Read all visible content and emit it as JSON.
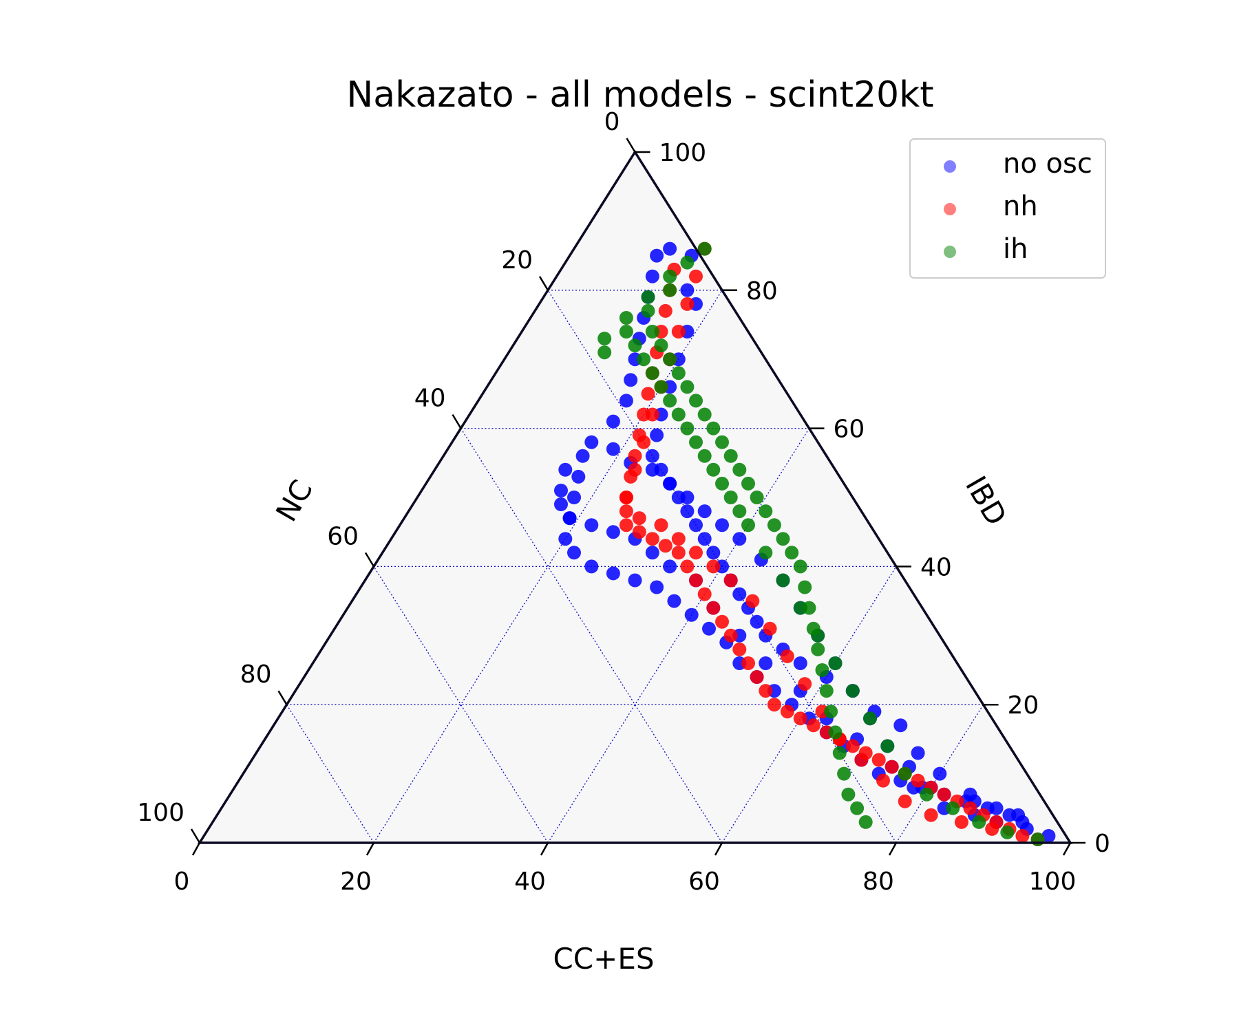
{
  "chart_data": {
    "type": "scatter",
    "subtype": "ternary",
    "title": "Nakazato - all models - scint20kt",
    "axes": {
      "bottom": {
        "label": "CC+ES",
        "ticks": [
          "0",
          "20",
          "40",
          "60",
          "80",
          "100"
        ]
      },
      "left": {
        "label": "NC",
        "ticks": [
          "0",
          "20",
          "40",
          "60",
          "80",
          "100"
        ]
      },
      "right": {
        "label": "IBD",
        "ticks": [
          "0",
          "20",
          "40",
          "60",
          "80",
          "100"
        ]
      }
    },
    "grid": true,
    "grid_step": 20,
    "legend_position": "top-right",
    "series": [
      {
        "name": "no osc",
        "color": "#0000ff",
        "note_points_as": "[CC+ES, IBD] percentages",
        "points": [
          [
            10,
            85
          ],
          [
            11,
            82
          ],
          [
            12,
            79
          ],
          [
            13,
            76
          ],
          [
            14,
            73
          ],
          [
            15,
            70
          ],
          [
            16,
            67
          ],
          [
            17,
            64
          ],
          [
            17,
            61
          ],
          [
            16,
            58
          ],
          [
            16,
            56
          ],
          [
            15,
            54
          ],
          [
            16,
            51
          ],
          [
            17,
            49
          ],
          [
            19,
            47
          ],
          [
            22,
            46
          ],
          [
            25,
            45
          ],
          [
            28,
            44
          ],
          [
            31,
            42
          ],
          [
            34,
            40
          ],
          [
            38,
            38
          ],
          [
            42,
            34
          ],
          [
            47,
            30
          ],
          [
            52,
            26
          ],
          [
            58,
            22
          ],
          [
            63,
            18
          ],
          [
            68,
            15
          ],
          [
            74,
            11
          ],
          [
            78,
            8
          ],
          [
            83,
            5
          ],
          [
            87,
            4
          ],
          [
            90,
            3
          ],
          [
            94,
            2
          ],
          [
            97,
            1
          ],
          [
            11,
            86
          ],
          [
            14,
            85
          ],
          [
            16,
            80
          ],
          [
            18,
            78
          ],
          [
            19,
            74
          ],
          [
            20,
            70
          ],
          [
            21,
            66
          ],
          [
            22,
            62
          ],
          [
            23,
            59
          ],
          [
            24,
            56
          ],
          [
            26,
            54
          ],
          [
            28,
            52
          ],
          [
            30,
            50
          ],
          [
            32,
            48
          ],
          [
            34,
            46
          ],
          [
            36,
            44
          ],
          [
            38,
            42
          ],
          [
            40,
            40
          ],
          [
            42,
            38
          ],
          [
            44,
            36
          ],
          [
            46,
            34
          ],
          [
            48,
            32
          ],
          [
            50,
            30
          ],
          [
            53,
            28
          ],
          [
            56,
            26
          ],
          [
            60,
            24
          ],
          [
            64,
            22
          ],
          [
            68,
            19
          ],
          [
            72,
            17
          ],
          [
            76,
            13
          ],
          [
            80,
            10
          ],
          [
            85,
            7
          ],
          [
            89,
            5
          ],
          [
            93,
            3
          ],
          [
            17,
            53
          ],
          [
            18,
            50
          ],
          [
            19,
            47
          ],
          [
            20,
            44
          ],
          [
            22,
            42
          ],
          [
            25,
            40
          ],
          [
            28,
            39
          ],
          [
            31,
            38
          ],
          [
            34,
            37
          ],
          [
            37,
            35
          ],
          [
            40,
            33
          ],
          [
            43,
            31
          ],
          [
            46,
            29
          ],
          [
            49,
            26
          ],
          [
            52,
            24
          ],
          [
            55,
            22
          ],
          [
            58,
            20
          ],
          [
            61,
            18
          ],
          [
            64,
            16
          ],
          [
            67,
            14
          ],
          [
            70,
            12
          ],
          [
            73,
            10
          ],
          [
            76,
            9
          ],
          [
            79,
            8
          ],
          [
            82,
            7
          ],
          [
            85,
            6
          ],
          [
            88,
            5
          ],
          [
            91,
            4
          ],
          [
            19,
            57
          ],
          [
            22,
            55
          ],
          [
            25,
            54
          ],
          [
            28,
            52
          ],
          [
            31,
            50
          ],
          [
            34,
            48
          ],
          [
            37,
            46
          ],
          [
            40,
            44
          ],
          [
            44,
            41
          ],
          [
            48,
            38
          ],
          [
            52,
            34
          ],
          [
            56,
            30
          ],
          [
            60,
            26
          ],
          [
            64,
            22
          ],
          [
            68,
            18
          ],
          [
            72,
            14
          ],
          [
            76,
            11
          ],
          [
            80,
            8
          ],
          [
            86,
            6
          ],
          [
            92,
            4
          ]
        ]
      },
      {
        "name": "nh",
        "color": "#ff0000",
        "points": [
          [
            13,
            83
          ],
          [
            14,
            80
          ],
          [
            15,
            77
          ],
          [
            16,
            74
          ],
          [
            17,
            71
          ],
          [
            18,
            68
          ],
          [
            19,
            65
          ],
          [
            20,
            62
          ],
          [
            21,
            59
          ],
          [
            22,
            56
          ],
          [
            23,
            53
          ],
          [
            24,
            50
          ],
          [
            25,
            48
          ],
          [
            26,
            46
          ],
          [
            28,
            45
          ],
          [
            30,
            44
          ],
          [
            32,
            43
          ],
          [
            34,
            42
          ],
          [
            36,
            40
          ],
          [
            38,
            38
          ],
          [
            40,
            36
          ],
          [
            42,
            34
          ],
          [
            44,
            32
          ],
          [
            46,
            30
          ],
          [
            48,
            28
          ],
          [
            50,
            26
          ],
          [
            52,
            24
          ],
          [
            54,
            22
          ],
          [
            56,
            20
          ],
          [
            58,
            19
          ],
          [
            60,
            18
          ],
          [
            62,
            17
          ],
          [
            64,
            16
          ],
          [
            66,
            15
          ],
          [
            68,
            14
          ],
          [
            70,
            13
          ],
          [
            72,
            12
          ],
          [
            74,
            11
          ],
          [
            76,
            10
          ],
          [
            78,
            9
          ],
          [
            80,
            8
          ],
          [
            82,
            7
          ],
          [
            84,
            6
          ],
          [
            86,
            5
          ],
          [
            88,
            4
          ],
          [
            90,
            3
          ],
          [
            92,
            2
          ],
          [
            94,
            1
          ],
          [
            96,
            0.5
          ],
          [
            15,
            86
          ],
          [
            16,
            82
          ],
          [
            17,
            78
          ],
          [
            18,
            74
          ],
          [
            19,
            70
          ],
          [
            20,
            66
          ],
          [
            21,
            62
          ],
          [
            22,
            58
          ],
          [
            23,
            54
          ],
          [
            24,
            50
          ],
          [
            27,
            47
          ],
          [
            30,
            46
          ],
          [
            33,
            44
          ],
          [
            36,
            42
          ],
          [
            39,
            40
          ],
          [
            42,
            38
          ],
          [
            46,
            35
          ],
          [
            50,
            31
          ],
          [
            54,
            27
          ],
          [
            58,
            23
          ],
          [
            62,
            19
          ],
          [
            66,
            15
          ],
          [
            70,
            12
          ],
          [
            74,
            9
          ],
          [
            78,
            6
          ],
          [
            82,
            4
          ],
          [
            86,
            3
          ],
          [
            90,
            2
          ]
        ]
      },
      {
        "name": "ih",
        "color": "#008000",
        "points": [
          [
            10,
            73
          ],
          [
            11,
            76
          ],
          [
            12,
            79
          ],
          [
            13,
            82
          ],
          [
            14,
            84
          ],
          [
            15,
            86
          ],
          [
            14,
            80
          ],
          [
            13,
            77
          ],
          [
            15,
            74
          ],
          [
            17,
            72
          ],
          [
            19,
            70
          ],
          [
            21,
            68
          ],
          [
            23,
            66
          ],
          [
            25,
            64
          ],
          [
            27,
            62
          ],
          [
            29,
            60
          ],
          [
            31,
            58
          ],
          [
            33,
            56
          ],
          [
            35,
            54
          ],
          [
            37,
            52
          ],
          [
            39,
            50
          ],
          [
            41,
            48
          ],
          [
            43,
            46
          ],
          [
            45,
            44
          ],
          [
            47,
            42
          ],
          [
            49,
            40
          ],
          [
            51,
            37
          ],
          [
            53,
            34
          ],
          [
            55,
            31
          ],
          [
            57,
            28
          ],
          [
            59,
            25
          ],
          [
            61,
            22
          ],
          [
            63,
            19
          ],
          [
            65,
            16
          ],
          [
            67,
            13
          ],
          [
            69,
            10
          ],
          [
            71,
            7
          ],
          [
            73,
            5
          ],
          [
            75,
            3
          ],
          [
            11,
            71
          ],
          [
            12,
            74
          ],
          [
            14,
            72
          ],
          [
            16,
            70
          ],
          [
            18,
            68
          ],
          [
            20,
            66
          ],
          [
            22,
            64
          ],
          [
            24,
            62
          ],
          [
            26,
            60
          ],
          [
            28,
            58
          ],
          [
            30,
            56
          ],
          [
            32,
            54
          ],
          [
            34,
            52
          ],
          [
            36,
            50
          ],
          [
            38,
            48
          ],
          [
            40,
            46
          ],
          [
            44,
            42
          ],
          [
            48,
            38
          ],
          [
            52,
            34
          ],
          [
            56,
            30
          ],
          [
            60,
            26
          ],
          [
            64,
            22
          ],
          [
            68,
            18
          ],
          [
            72,
            14
          ],
          [
            76,
            10
          ],
          [
            80,
            7
          ],
          [
            84,
            5
          ],
          [
            88,
            3
          ],
          [
            92,
            1.5
          ],
          [
            96,
            0.5
          ]
        ]
      }
    ]
  }
}
